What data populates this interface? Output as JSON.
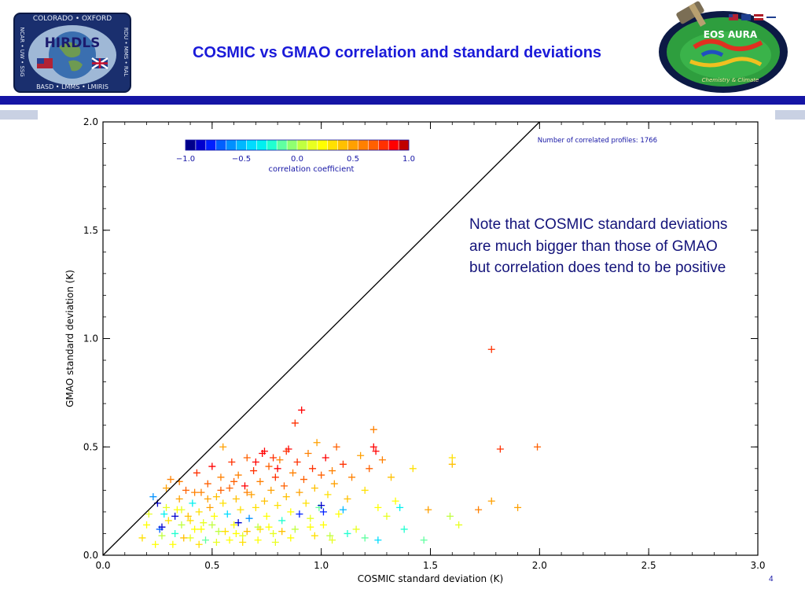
{
  "slide": {
    "title": "COSMIC vs GMAO  correlation and standard deviations",
    "note": "Note that COSMIC standard deviations are much bigger than those of GMAO but correlation does tend to be positive",
    "page_number": "4"
  },
  "logos": {
    "left": {
      "name": "HIRDLS",
      "top_arc": "COLORADO • OXFORD",
      "bottom_arc": "BASD • LMMS • LMIRIS",
      "left_side": "NCAR • UW • SSG",
      "right_side": "RDU • MMS • RAL"
    },
    "right": {
      "name": "EOS AURA",
      "caption": "Chemistry & Climate"
    }
  },
  "colors": {
    "title": "#1a1ad9",
    "band": "#1515a5",
    "band_light": "#c9d1e3",
    "note": "#13137a",
    "one_to_one_line": "#000000"
  },
  "chart_data": {
    "type": "scatter",
    "xlabel": "COSMIC standard deviation (K)",
    "ylabel": "GMAO standard deviation (K)",
    "xlim": [
      0.0,
      3.0
    ],
    "ylim": [
      0.0,
      2.0
    ],
    "xticks": [
      "0.0",
      "0.5",
      "1.0",
      "1.5",
      "2.0",
      "2.5",
      "3.0"
    ],
    "yticks": [
      "0.0",
      "0.5",
      "1.0",
      "1.5",
      "2.0"
    ],
    "annotation": "Number of correlated profiles: 1766",
    "marker": "+",
    "one_to_one_line": true,
    "colorbar": {
      "label": "correlation coefficient",
      "range": [
        -1.0,
        1.0
      ],
      "ticks": [
        "-1.0",
        "-0.5",
        "0.0",
        "0.5",
        "1.0"
      ],
      "colors": [
        "#00008b",
        "#0000cd",
        "#0020ff",
        "#0060ff",
        "#0090ff",
        "#00b8ff",
        "#00dcff",
        "#00f0f0",
        "#20ffd0",
        "#60ffa0",
        "#90ff70",
        "#c0ff40",
        "#e8ff20",
        "#ffff00",
        "#ffe000",
        "#ffc000",
        "#ffa000",
        "#ff8000",
        "#ff6000",
        "#ff3000",
        "#ff0000",
        "#c00000"
      ]
    },
    "points": [
      {
        "x": 0.23,
        "y": 0.27,
        "r": -0.6
      },
      {
        "x": 0.26,
        "y": 0.12,
        "r": -0.7
      },
      {
        "x": 0.29,
        "y": 0.22,
        "r": 0.1
      },
      {
        "x": 0.3,
        "y": 0.16,
        "r": 0.3
      },
      {
        "x": 0.31,
        "y": 0.35,
        "r": 0.6
      },
      {
        "x": 0.33,
        "y": 0.1,
        "r": -0.2
      },
      {
        "x": 0.34,
        "y": 0.21,
        "r": 0.2
      },
      {
        "x": 0.35,
        "y": 0.26,
        "r": 0.5
      },
      {
        "x": 0.36,
        "y": 0.14,
        "r": 0.0
      },
      {
        "x": 0.38,
        "y": 0.3,
        "r": 0.7
      },
      {
        "x": 0.39,
        "y": 0.18,
        "r": 0.4
      },
      {
        "x": 0.4,
        "y": 0.08,
        "r": 0.1
      },
      {
        "x": 0.41,
        "y": 0.24,
        "r": -0.3
      },
      {
        "x": 0.42,
        "y": 0.12,
        "r": 0.2
      },
      {
        "x": 0.43,
        "y": 0.38,
        "r": 0.8
      },
      {
        "x": 0.44,
        "y": 0.2,
        "r": 0.3
      },
      {
        "x": 0.45,
        "y": 0.29,
        "r": 0.6
      },
      {
        "x": 0.46,
        "y": 0.15,
        "r": 0.1
      },
      {
        "x": 0.47,
        "y": 0.07,
        "r": -0.1
      },
      {
        "x": 0.48,
        "y": 0.33,
        "r": 0.7
      },
      {
        "x": 0.49,
        "y": 0.22,
        "r": 0.5
      },
      {
        "x": 0.5,
        "y": 0.41,
        "r": 0.9
      },
      {
        "x": 0.51,
        "y": 0.18,
        "r": 0.2
      },
      {
        "x": 0.52,
        "y": 0.27,
        "r": 0.4
      },
      {
        "x": 0.53,
        "y": 0.11,
        "r": 0.0
      },
      {
        "x": 0.54,
        "y": 0.36,
        "r": 0.6
      },
      {
        "x": 0.55,
        "y": 0.24,
        "r": 0.3
      },
      {
        "x": 0.55,
        "y": 0.5,
        "r": 0.5
      },
      {
        "x": 0.57,
        "y": 0.19,
        "r": -0.4
      },
      {
        "x": 0.58,
        "y": 0.31,
        "r": 0.7
      },
      {
        "x": 0.59,
        "y": 0.43,
        "r": 0.8
      },
      {
        "x": 0.6,
        "y": 0.14,
        "r": 0.2
      },
      {
        "x": 0.61,
        "y": 0.26,
        "r": 0.4
      },
      {
        "x": 0.62,
        "y": 0.37,
        "r": 0.6
      },
      {
        "x": 0.63,
        "y": 0.21,
        "r": 0.3
      },
      {
        "x": 0.64,
        "y": 0.09,
        "r": 0.1
      },
      {
        "x": 0.65,
        "y": 0.32,
        "r": 0.9
      },
      {
        "x": 0.66,
        "y": 0.45,
        "r": 0.7
      },
      {
        "x": 0.67,
        "y": 0.17,
        "r": -0.6
      },
      {
        "x": 0.68,
        "y": 0.28,
        "r": 0.5
      },
      {
        "x": 0.69,
        "y": 0.39,
        "r": 0.8
      },
      {
        "x": 0.7,
        "y": 0.22,
        "r": 0.3
      },
      {
        "x": 0.71,
        "y": 0.13,
        "r": 0.0
      },
      {
        "x": 0.72,
        "y": 0.34,
        "r": 0.6
      },
      {
        "x": 0.73,
        "y": 0.47,
        "r": 0.9
      },
      {
        "x": 0.74,
        "y": 0.25,
        "r": 0.4
      },
      {
        "x": 0.75,
        "y": 0.18,
        "r": 0.2
      },
      {
        "x": 0.76,
        "y": 0.41,
        "r": 0.7
      },
      {
        "x": 0.77,
        "y": 0.3,
        "r": 0.5
      },
      {
        "x": 0.78,
        "y": 0.1,
        "r": 0.1
      },
      {
        "x": 0.79,
        "y": 0.36,
        "r": 0.8
      },
      {
        "x": 0.8,
        "y": 0.23,
        "r": 0.3
      },
      {
        "x": 0.81,
        "y": 0.44,
        "r": 0.6
      },
      {
        "x": 0.82,
        "y": 0.16,
        "r": -0.2
      },
      {
        "x": 0.83,
        "y": 0.32,
        "r": 0.7
      },
      {
        "x": 0.84,
        "y": 0.27,
        "r": 0.4
      },
      {
        "x": 0.85,
        "y": 0.49,
        "r": 0.9
      },
      {
        "x": 0.86,
        "y": 0.2,
        "r": 0.2
      },
      {
        "x": 0.87,
        "y": 0.38,
        "r": 0.6
      },
      {
        "x": 0.88,
        "y": 0.12,
        "r": 0.0
      },
      {
        "x": 0.89,
        "y": 0.43,
        "r": 0.8
      },
      {
        "x": 0.9,
        "y": 0.29,
        "r": 0.5
      },
      {
        "x": 0.91,
        "y": 0.67,
        "r": 0.95
      },
      {
        "x": 0.88,
        "y": 0.61,
        "r": 0.85
      },
      {
        "x": 0.92,
        "y": 0.35,
        "r": 0.7
      },
      {
        "x": 0.93,
        "y": 0.24,
        "r": 0.3
      },
      {
        "x": 0.94,
        "y": 0.47,
        "r": 0.6
      },
      {
        "x": 0.95,
        "y": 0.17,
        "r": 0.1
      },
      {
        "x": 0.96,
        "y": 0.4,
        "r": 0.8
      },
      {
        "x": 0.97,
        "y": 0.31,
        "r": 0.4
      },
      {
        "x": 0.98,
        "y": 0.52,
        "r": 0.5
      },
      {
        "x": 0.99,
        "y": 0.22,
        "r": -0.1
      },
      {
        "x": 1.0,
        "y": 0.37,
        "r": 0.7
      },
      {
        "x": 1.01,
        "y": 0.14,
        "r": 0.2
      },
      {
        "x": 1.02,
        "y": 0.45,
        "r": 0.9
      },
      {
        "x": 1.03,
        "y": 0.28,
        "r": 0.3
      },
      {
        "x": 1.04,
        "y": 0.09,
        "r": 0.0
      },
      {
        "x": 1.05,
        "y": 0.39,
        "r": 0.6
      },
      {
        "x": 1.06,
        "y": 0.33,
        "r": 0.5
      },
      {
        "x": 1.07,
        "y": 0.5,
        "r": 0.7
      },
      {
        "x": 1.08,
        "y": 0.19,
        "r": 0.2
      },
      {
        "x": 1.1,
        "y": 0.42,
        "r": 0.8
      },
      {
        "x": 1.12,
        "y": 0.26,
        "r": 0.4
      },
      {
        "x": 1.14,
        "y": 0.36,
        "r": 0.6
      },
      {
        "x": 1.16,
        "y": 0.12,
        "r": 0.1
      },
      {
        "x": 1.18,
        "y": 0.46,
        "r": 0.5
      },
      {
        "x": 1.2,
        "y": 0.3,
        "r": 0.3
      },
      {
        "x": 1.22,
        "y": 0.4,
        "r": 0.7
      },
      {
        "x": 1.24,
        "y": 0.5,
        "r": 0.9
      },
      {
        "x": 1.26,
        "y": 0.22,
        "r": 0.2
      },
      {
        "x": 1.28,
        "y": 0.44,
        "r": 0.6
      },
      {
        "x": 1.3,
        "y": 0.18,
        "r": 0.1
      },
      {
        "x": 1.24,
        "y": 0.58,
        "r": 0.6
      },
      {
        "x": 1.25,
        "y": 0.48,
        "r": 0.9
      },
      {
        "x": 1.32,
        "y": 0.36,
        "r": 0.4
      },
      {
        "x": 1.34,
        "y": 0.25,
        "r": 0.2
      },
      {
        "x": 1.36,
        "y": 0.22,
        "r": -0.3
      },
      {
        "x": 1.38,
        "y": 0.12,
        "r": -0.2
      },
      {
        "x": 1.42,
        "y": 0.4,
        "r": 0.3
      },
      {
        "x": 1.47,
        "y": 0.07,
        "r": -0.1
      },
      {
        "x": 1.49,
        "y": 0.21,
        "r": 0.5
      },
      {
        "x": 1.6,
        "y": 0.42,
        "r": 0.4
      },
      {
        "x": 1.6,
        "y": 0.45,
        "r": 0.3
      },
      {
        "x": 1.59,
        "y": 0.18,
        "r": 0.0
      },
      {
        "x": 1.63,
        "y": 0.14,
        "r": 0.1
      },
      {
        "x": 1.72,
        "y": 0.21,
        "r": 0.6
      },
      {
        "x": 1.78,
        "y": 0.25,
        "r": 0.5
      },
      {
        "x": 1.9,
        "y": 0.22,
        "r": 0.5
      },
      {
        "x": 1.78,
        "y": 0.95,
        "r": 0.8
      },
      {
        "x": 1.82,
        "y": 0.49,
        "r": 0.8
      },
      {
        "x": 1.99,
        "y": 0.5,
        "r": 0.7
      },
      {
        "x": 0.97,
        "y": 0.09,
        "r": 0.3
      },
      {
        "x": 1.05,
        "y": 0.07,
        "r": 0.1
      },
      {
        "x": 1.12,
        "y": 0.1,
        "r": -0.2
      },
      {
        "x": 1.2,
        "y": 0.08,
        "r": -0.1
      },
      {
        "x": 1.26,
        "y": 0.07,
        "r": -0.4
      },
      {
        "x": 1.1,
        "y": 0.21,
        "r": -0.5
      },
      {
        "x": 1.01,
        "y": 0.2,
        "r": -0.8
      },
      {
        "x": 0.95,
        "y": 0.13,
        "r": 0.2
      },
      {
        "x": 0.18,
        "y": 0.08,
        "r": 0.3
      },
      {
        "x": 0.2,
        "y": 0.14,
        "r": 0.2
      },
      {
        "x": 0.21,
        "y": 0.19,
        "r": 0.1
      },
      {
        "x": 0.24,
        "y": 0.05,
        "r": 0.2
      },
      {
        "x": 0.27,
        "y": 0.09,
        "r": 0.0
      },
      {
        "x": 0.28,
        "y": 0.19,
        "r": -0.3
      },
      {
        "x": 0.32,
        "y": 0.05,
        "r": 0.2
      },
      {
        "x": 0.37,
        "y": 0.08,
        "r": 0.4
      },
      {
        "x": 0.44,
        "y": 0.05,
        "r": 0.3
      },
      {
        "x": 0.52,
        "y": 0.06,
        "r": 0.1
      },
      {
        "x": 0.58,
        "y": 0.07,
        "r": 0.2
      },
      {
        "x": 0.64,
        "y": 0.06,
        "r": 0.3
      },
      {
        "x": 0.71,
        "y": 0.07,
        "r": 0.2
      },
      {
        "x": 0.79,
        "y": 0.06,
        "r": 0.1
      },
      {
        "x": 0.86,
        "y": 0.08,
        "r": 0.2
      },
      {
        "x": 0.25,
        "y": 0.24,
        "r": -0.9
      },
      {
        "x": 0.27,
        "y": 0.13,
        "r": -0.9
      },
      {
        "x": 0.33,
        "y": 0.18,
        "r": -0.9
      },
      {
        "x": 0.62,
        "y": 0.15,
        "r": -0.9
      },
      {
        "x": 1.0,
        "y": 0.23,
        "r": -0.9
      },
      {
        "x": 0.9,
        "y": 0.19,
        "r": -0.8
      },
      {
        "x": 0.36,
        "y": 0.21,
        "r": 0.1
      },
      {
        "x": 0.4,
        "y": 0.16,
        "r": 0.3
      },
      {
        "x": 0.45,
        "y": 0.12,
        "r": 0.2
      },
      {
        "x": 0.5,
        "y": 0.14,
        "r": 0.0
      },
      {
        "x": 0.56,
        "y": 0.11,
        "r": 0.3
      },
      {
        "x": 0.61,
        "y": 0.1,
        "r": 0.2
      },
      {
        "x": 0.66,
        "y": 0.11,
        "r": 0.4
      },
      {
        "x": 0.72,
        "y": 0.12,
        "r": 0.3
      },
      {
        "x": 0.76,
        "y": 0.13,
        "r": 0.2
      },
      {
        "x": 0.82,
        "y": 0.11,
        "r": 0.4
      },
      {
        "x": 0.29,
        "y": 0.31,
        "r": 0.5
      },
      {
        "x": 0.35,
        "y": 0.34,
        "r": 0.6
      },
      {
        "x": 0.42,
        "y": 0.29,
        "r": 0.6
      },
      {
        "x": 0.48,
        "y": 0.26,
        "r": 0.5
      },
      {
        "x": 0.54,
        "y": 0.3,
        "r": 0.7
      },
      {
        "x": 0.6,
        "y": 0.34,
        "r": 0.7
      },
      {
        "x": 0.66,
        "y": 0.29,
        "r": 0.6
      },
      {
        "x": 0.7,
        "y": 0.43,
        "r": 0.9
      },
      {
        "x": 0.78,
        "y": 0.45,
        "r": 0.8
      },
      {
        "x": 0.84,
        "y": 0.48,
        "r": 0.8
      },
      {
        "x": 0.74,
        "y": 0.48,
        "r": 0.9
      },
      {
        "x": 0.8,
        "y": 0.4,
        "r": 0.9
      }
    ]
  }
}
